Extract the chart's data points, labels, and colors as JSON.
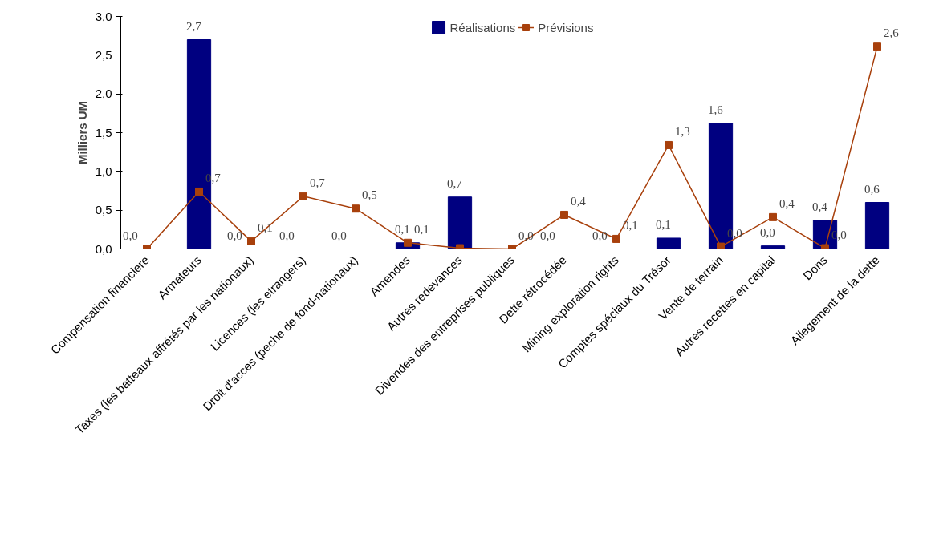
{
  "chart_data": {
    "type": "bar",
    "ylabel": "Milliers UM",
    "categories": [
      "Compensation financiere",
      "Armateurs",
      "Taxes (les batteaux affrétés par les nationaux)",
      "Licences (les etrangers)",
      "Droit d'acces (peche de fond-nationaux)",
      "Amendes",
      "Autres redevances",
      "Divendes des entreprises publiques",
      "Dette rétrocédée",
      "Mining exploration rights",
      "Comptes spéciaux du Trésor",
      "Vente de terrain",
      "Autres recettes en capital",
      "Dons",
      "Allegement de la dette"
    ],
    "series": [
      {
        "name": "Réalisations",
        "color": "#000080",
        "values": [
          0,
          2.7,
          0,
          0,
          0,
          0.08,
          0.67,
          0,
          0,
          0,
          0.14,
          1.62,
          0.04,
          0.37,
          0.6
        ],
        "value_labels": [
          "0,0",
          "2,7",
          "0,0",
          "0,0",
          "0,0",
          "0,1",
          "0,7",
          null,
          "0,0",
          "0,0",
          "0,1",
          "1,6",
          "0,0",
          "0,4",
          "0,6"
        ]
      },
      {
        "name": "Prévisions",
        "type": "line",
        "color": "#a8400c",
        "marker": "square",
        "values": [
          0,
          0.74,
          0.1,
          0.68,
          0.52,
          0.08,
          0.01,
          0,
          0.44,
          0.13,
          1.34,
          0.03,
          0.41,
          0.01,
          2.61
        ],
        "value_labels": [
          null,
          "0,7",
          "0,1",
          "0,7",
          "0,5",
          "0,1",
          null,
          "0,0",
          "0,4",
          "0,1",
          "1,3",
          "0,0",
          "0,4",
          "0,0",
          "2,6"
        ]
      }
    ],
    "ylim": [
      0,
      3
    ],
    "yticks": [
      {
        "value": 0,
        "label": "0,0"
      },
      {
        "value": 0.5,
        "label": "0,5"
      },
      {
        "value": 1,
        "label": "1,0"
      },
      {
        "value": 1.5,
        "label": "1,5"
      },
      {
        "value": 2,
        "label": "2,0"
      },
      {
        "value": 2.5,
        "label": "2,5"
      },
      {
        "value": 3,
        "label": "3,0"
      }
    ],
    "grid": false,
    "legend": "top"
  }
}
